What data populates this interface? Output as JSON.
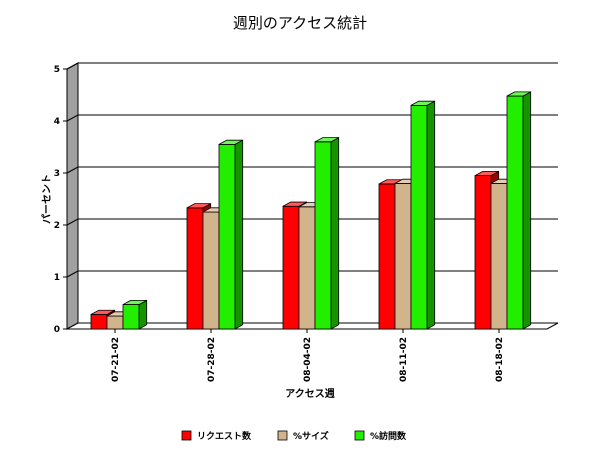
{
  "chart_data": {
    "type": "bar",
    "title": "週別のアクセス統計",
    "xlabel": "アクセス週",
    "ylabel": "パーセント",
    "ylim": [
      0,
      5
    ],
    "yticks": [
      "0",
      "1",
      "2",
      "3",
      "4",
      "5"
    ],
    "grid": true,
    "legend_position": "bottom",
    "categories": [
      "07-21-02",
      "07-28-02",
      "08-04-02",
      "08-11-02",
      "08-18-02"
    ],
    "series": [
      {
        "name": "リクエスト数",
        "color": "#ff0000",
        "values": [
          0.28,
          2.33,
          2.36,
          2.79,
          2.95
        ]
      },
      {
        "name": "%サイズ",
        "color": "#d2b48c",
        "values": [
          0.25,
          2.25,
          2.35,
          2.8,
          2.8
        ]
      },
      {
        "name": "%訪問数",
        "color": "#22ee00",
        "values": [
          0.47,
          3.55,
          3.6,
          4.3,
          4.48
        ]
      }
    ]
  }
}
